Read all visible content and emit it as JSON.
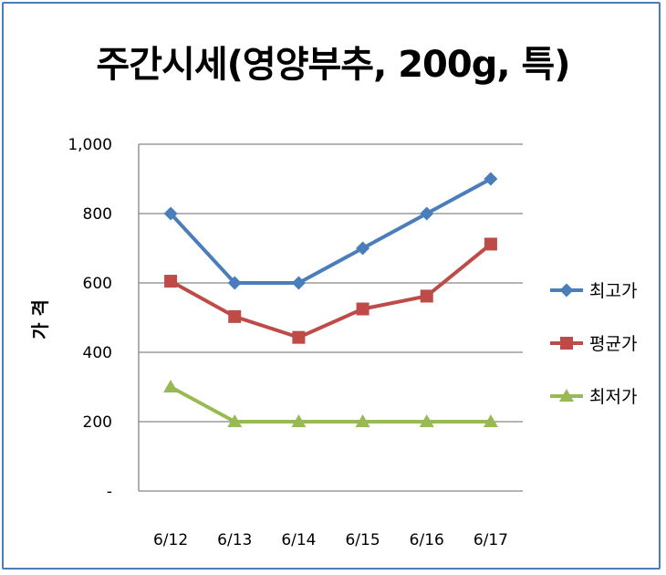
{
  "chart_data": {
    "type": "line",
    "title": "주간시세(영양부추, 200g, 특)",
    "ylabel": "가 격",
    "xlabel": "",
    "categories": [
      "6/12",
      "6/13",
      "6/14",
      "6/15",
      "6/16",
      "6/17"
    ],
    "y_ticks": [
      "-",
      "200",
      "400",
      "600",
      "800",
      "1,000"
    ],
    "ylim": [
      0,
      1000
    ],
    "grid": true,
    "legend_position": "right",
    "series": [
      {
        "name": "최고가",
        "color": "#4a7ebb",
        "marker": "diamond",
        "values": [
          800,
          600,
          600,
          700,
          800,
          900
        ]
      },
      {
        "name": "평균가",
        "color": "#be4b48",
        "marker": "square",
        "values": [
          605,
          503,
          443,
          525,
          562,
          712
        ]
      },
      {
        "name": "최저가",
        "color": "#98b954",
        "marker": "triangle",
        "values": [
          300,
          200,
          200,
          200,
          200,
          200
        ]
      }
    ]
  }
}
